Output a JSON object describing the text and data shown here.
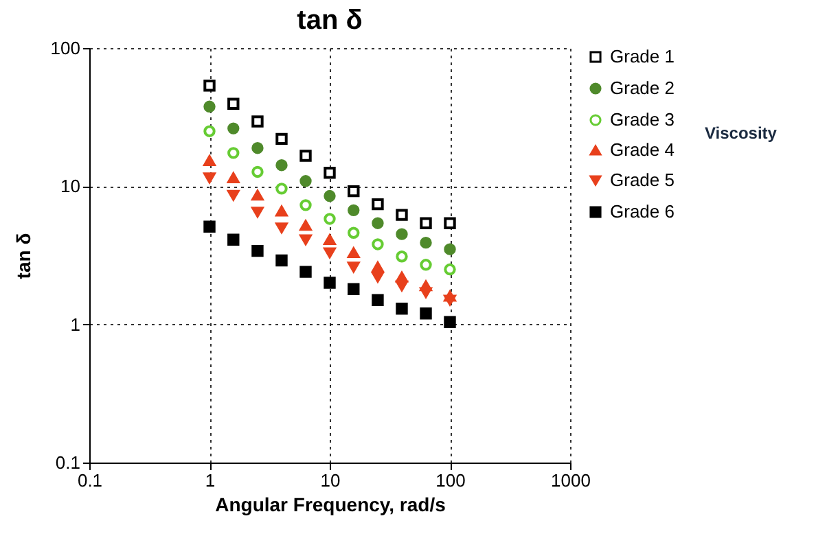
{
  "chart_data": {
    "type": "scatter",
    "title": "tan δ",
    "xlabel": "Angular Frequency, rad/s",
    "ylabel": "tan δ",
    "x": [
      1,
      1.58,
      2.51,
      3.98,
      6.31,
      10,
      15.8,
      25.1,
      39.8,
      63.1,
      100
    ],
    "series": [
      {
        "name": "Grade 1",
        "color": "#000000",
        "marker": "square",
        "values": [
          53.5,
          39.5,
          29.4,
          22.0,
          16.6,
          12.5,
          9.2,
          7.4,
          6.2,
          5.4,
          5.4
        ]
      },
      {
        "name": "Grade 2",
        "color": "#4f8a2b",
        "marker": "circle",
        "values": [
          37.7,
          26.2,
          18.9,
          14.2,
          10.9,
          8.5,
          6.7,
          5.4,
          4.5,
          3.9,
          3.5
        ]
      },
      {
        "name": "Grade 3",
        "color": "#66cc33",
        "marker": "circle",
        "values": [
          25.0,
          17.4,
          12.7,
          9.6,
          7.3,
          5.8,
          4.6,
          3.8,
          3.1,
          2.7,
          2.5
        ]
      },
      {
        "name": "Grade 4",
        "color": "#e8401c",
        "marker": "triangle",
        "values": [
          15.3,
          11.5,
          8.6,
          6.6,
          5.2,
          4.1,
          3.3,
          2.6,
          2.2,
          1.9,
          1.6
        ]
      },
      {
        "name": "Grade 5",
        "color": "#e8401c",
        "marker": "triangle-down",
        "values": [
          11.5,
          8.6,
          6.5,
          5.0,
          4.1,
          3.3,
          2.6,
          2.2,
          1.9,
          1.7,
          1.5
        ]
      },
      {
        "name": "Grade 6",
        "color": "#000000",
        "marker": "square",
        "values": [
          5.1,
          4.1,
          3.4,
          2.9,
          2.4,
          2.0,
          1.8,
          1.5,
          1.3,
          1.2,
          1.04
        ]
      }
    ],
    "xlim": [
      0.1,
      1000
    ],
    "ylim": [
      0.1,
      100
    ],
    "xticks": [
      0.1,
      1,
      10,
      100,
      1000
    ],
    "yticks": [
      0.1,
      1,
      10,
      100
    ],
    "log": "xy",
    "grid": true,
    "legend": "top right",
    "annotations": [
      "Viscosity"
    ]
  }
}
